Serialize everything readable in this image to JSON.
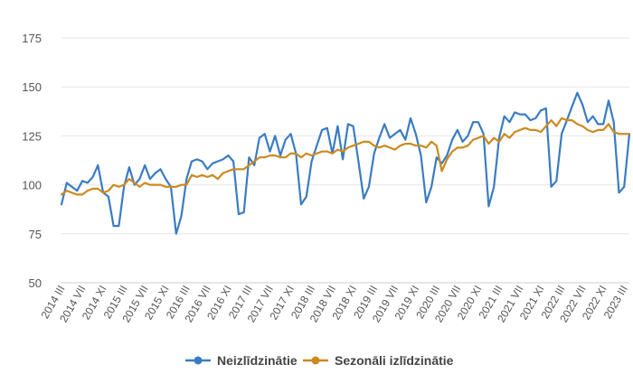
{
  "chart_data": {
    "type": "line",
    "title": "",
    "xlabel": "",
    "ylabel": "",
    "ylim": [
      50,
      175
    ],
    "yticks": [
      50,
      75,
      100,
      125,
      150,
      175
    ],
    "grid": true,
    "legend_position": "bottom",
    "x_tick_labels": [
      "2014 III",
      "2014 VII",
      "2014 XI",
      "2015 III",
      "2015 VII",
      "2015 XI",
      "2016 III",
      "2016 VII",
      "2016 XI",
      "2017 III",
      "2017 VII",
      "2017 XI",
      "2018 III",
      "2018 VII",
      "2018 XI",
      "2019 III",
      "2019 VII",
      "2019 XI",
      "2020 III",
      "2020 VII",
      "2020 XI",
      "2021 III",
      "2021 VII",
      "2021 XI",
      "2022 III",
      "2022 VII",
      "2022 XI",
      "2023 III"
    ],
    "series": [
      {
        "name": "Neizlīdzinātie",
        "color": "#3a7cc2",
        "values": [
          90,
          101,
          99,
          97,
          102,
          101,
          104,
          110,
          96,
          94,
          79,
          79,
          99,
          109,
          100,
          103,
          110,
          103,
          106,
          108,
          103,
          99,
          75,
          84,
          103,
          112,
          113,
          112,
          108,
          111,
          112,
          113,
          115,
          112,
          85,
          86,
          114,
          110,
          124,
          126,
          117,
          125,
          115,
          123,
          126,
          116,
          90,
          94,
          112,
          120,
          128,
          129,
          116,
          130,
          113,
          131,
          130,
          112,
          93,
          99,
          116,
          124,
          131,
          124,
          126,
          128,
          123,
          134,
          126,
          115,
          91,
          99,
          114,
          111,
          115,
          123,
          128,
          122,
          125,
          132,
          132,
          126,
          89,
          99,
          124,
          135,
          132,
          137,
          136,
          136,
          133,
          134,
          138,
          139,
          99,
          102,
          126,
          133,
          140,
          147,
          141,
          132,
          135,
          131,
          131,
          143,
          132,
          96,
          99,
          126
        ]
      },
      {
        "name": "Sezonāli izlīdzinātie",
        "color": "#cc8a1f",
        "values": [
          95,
          97,
          96,
          95,
          95,
          97,
          98,
          98,
          96,
          97,
          100,
          99,
          100,
          103,
          101,
          99,
          101,
          100,
          100,
          100,
          99,
          99,
          99,
          100,
          100,
          105,
          104,
          105,
          104,
          105,
          103,
          106,
          107,
          108,
          108,
          108,
          110,
          112,
          114,
          114,
          115,
          115,
          114,
          114,
          116,
          116,
          114,
          116,
          115,
          116,
          117,
          117,
          116,
          118,
          117,
          119,
          120,
          121,
          122,
          122,
          120,
          119,
          120,
          119,
          118,
          120,
          121,
          121,
          120,
          120,
          119,
          122,
          120,
          107,
          113,
          117,
          119,
          119,
          120,
          123,
          124,
          125,
          121,
          124,
          122,
          126,
          124,
          127,
          128,
          129,
          128,
          128,
          127,
          130,
          133,
          130,
          134,
          133,
          133,
          131,
          130,
          128,
          127,
          128,
          128,
          131,
          127,
          126,
          126,
          126
        ]
      }
    ]
  }
}
